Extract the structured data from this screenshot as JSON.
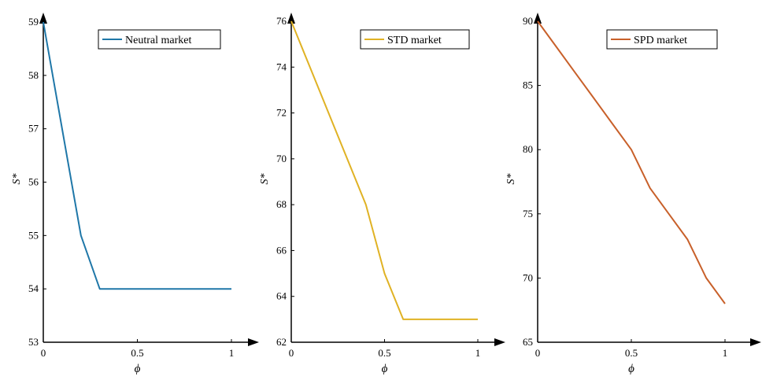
{
  "chart_data": [
    {
      "type": "line",
      "xlabel": "ϕ",
      "ylabel": "S*",
      "xlim": [
        0,
        1
      ],
      "ylim": [
        53,
        59
      ],
      "xticks": [
        "0",
        "0.5",
        "1"
      ],
      "yticks": [
        "53",
        "54",
        "55",
        "56",
        "57",
        "58",
        "59"
      ],
      "legend_position": "top-right",
      "series": [
        {
          "name": "Neutral market",
          "color": "#1f77a8",
          "x": [
            0,
            0.1,
            0.2,
            0.3,
            0.4,
            0.5,
            0.6,
            0.7,
            0.8,
            0.9,
            1.0
          ],
          "y": [
            59,
            57,
            55,
            54,
            54,
            54,
            54,
            54,
            54,
            54,
            54
          ]
        }
      ]
    },
    {
      "type": "line",
      "xlabel": "ϕ",
      "ylabel": "S*",
      "xlim": [
        0,
        1
      ],
      "ylim": [
        62,
        76
      ],
      "xticks": [
        "0",
        "0.5",
        "1"
      ],
      "yticks": [
        "62",
        "64",
        "66",
        "68",
        "70",
        "72",
        "74",
        "76"
      ],
      "legend_position": "top-right",
      "series": [
        {
          "name": "STD market",
          "color": "#e0b224",
          "x": [
            0,
            0.1,
            0.2,
            0.3,
            0.4,
            0.5,
            0.6,
            0.7,
            0.8,
            0.9,
            1.0
          ],
          "y": [
            76,
            74,
            72,
            70,
            68,
            65,
            63,
            63,
            63,
            63,
            63
          ]
        }
      ]
    },
    {
      "type": "line",
      "xlabel": "ϕ",
      "ylabel": "S*",
      "xlim": [
        0,
        1
      ],
      "ylim": [
        65,
        90
      ],
      "xticks": [
        "0",
        "0.5",
        "1"
      ],
      "yticks": [
        "65",
        "70",
        "75",
        "80",
        "85",
        "90"
      ],
      "legend_position": "top-right",
      "series": [
        {
          "name": "SPD market",
          "color": "#c8602a",
          "x": [
            0,
            0.1,
            0.2,
            0.3,
            0.4,
            0.5,
            0.6,
            0.7,
            0.8,
            0.9,
            1.0
          ],
          "y": [
            90,
            88,
            86,
            84,
            82,
            80,
            77,
            75,
            73,
            70,
            68
          ]
        }
      ]
    }
  ]
}
